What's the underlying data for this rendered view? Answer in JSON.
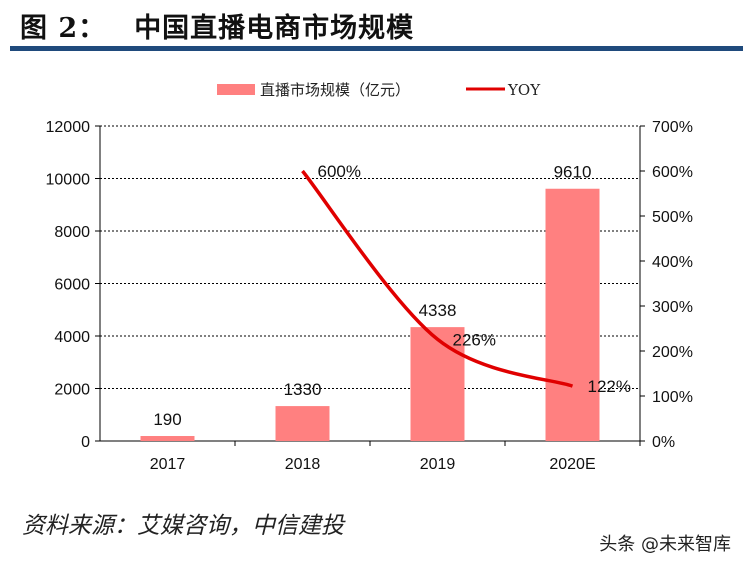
{
  "header": {
    "figure_no": "图 2：",
    "title": "中国直播电商市场规模"
  },
  "chart_data": {
    "type": "bar",
    "title": "中国直播电商市场规模",
    "categories": [
      "2017",
      "2018",
      "2019",
      "2020E"
    ],
    "series": [
      {
        "name": "直播市场规模（亿元）",
        "type": "bar",
        "axis": "left",
        "values": [
          190,
          1330,
          4338,
          9610
        ],
        "labels": [
          "190",
          "1330",
          "4338",
          "9610"
        ],
        "color": "#ff8080"
      },
      {
        "name": "YOY",
        "type": "line",
        "axis": "right",
        "values": [
          null,
          600,
          226,
          122
        ],
        "labels": [
          "",
          "600%",
          "226%",
          "122%"
        ],
        "color": "#e00000"
      }
    ],
    "left_axis": {
      "ylim": [
        0,
        12000
      ],
      "ticks": [
        "0",
        "2000",
        "4000",
        "6000",
        "8000",
        "10000",
        "12000"
      ]
    },
    "right_axis": {
      "ylim": [
        0,
        700
      ],
      "ticks": [
        "0%",
        "100%",
        "200%",
        "300%",
        "400%",
        "500%",
        "600%",
        "700%"
      ]
    },
    "grid": "dashed horizontal",
    "legend": "top-center"
  },
  "footer": {
    "source": "资料来源：艾媒咨询，中信建投",
    "watermark": "头条 @未来智库"
  }
}
